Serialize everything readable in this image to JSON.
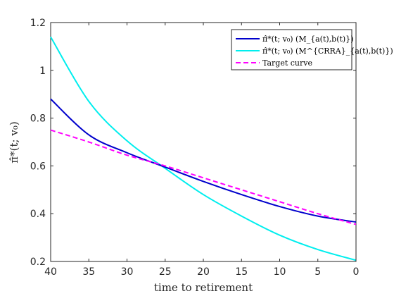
{
  "chart_data": {
    "type": "line",
    "xlabel": "time to retirement",
    "ylabel": "π̂*(t; v₀)",
    "xlim": [
      40,
      0
    ],
    "x_reversed": true,
    "ylim": [
      0.2,
      1.2
    ],
    "x_ticks": [
      40,
      35,
      30,
      25,
      20,
      15,
      10,
      5,
      0
    ],
    "y_ticks": [
      0.2,
      0.4,
      0.6,
      0.8,
      1,
      1.2
    ],
    "y_tick_labels": [
      "0.2",
      "0.4",
      "0.6",
      "0.8",
      "1",
      "1.2"
    ],
    "grid": false,
    "legend_position": "top-right",
    "x": [
      40,
      35,
      30,
      25,
      20,
      15,
      10,
      5,
      0
    ],
    "series": [
      {
        "name": "π̂*(t; v₀) (M_{a(t),b(t)})",
        "color": "#0000cc",
        "style": "solid",
        "values": [
          0.88,
          0.73,
          0.655,
          0.595,
          0.535,
          0.48,
          0.43,
          0.39,
          0.365
        ]
      },
      {
        "name": "π̂*(t; v₀) (M^{CRRA}_{a(t),b(t)})",
        "color": "#00eeee",
        "style": "solid",
        "values": [
          1.14,
          0.87,
          0.705,
          0.59,
          0.48,
          0.39,
          0.31,
          0.25,
          0.205
        ]
      },
      {
        "name": "Target curve",
        "color": "#ff00ff",
        "style": "dashed",
        "values": [
          0.75,
          0.7,
          0.645,
          0.6,
          0.55,
          0.5,
          0.45,
          0.4,
          0.355
        ]
      }
    ]
  }
}
